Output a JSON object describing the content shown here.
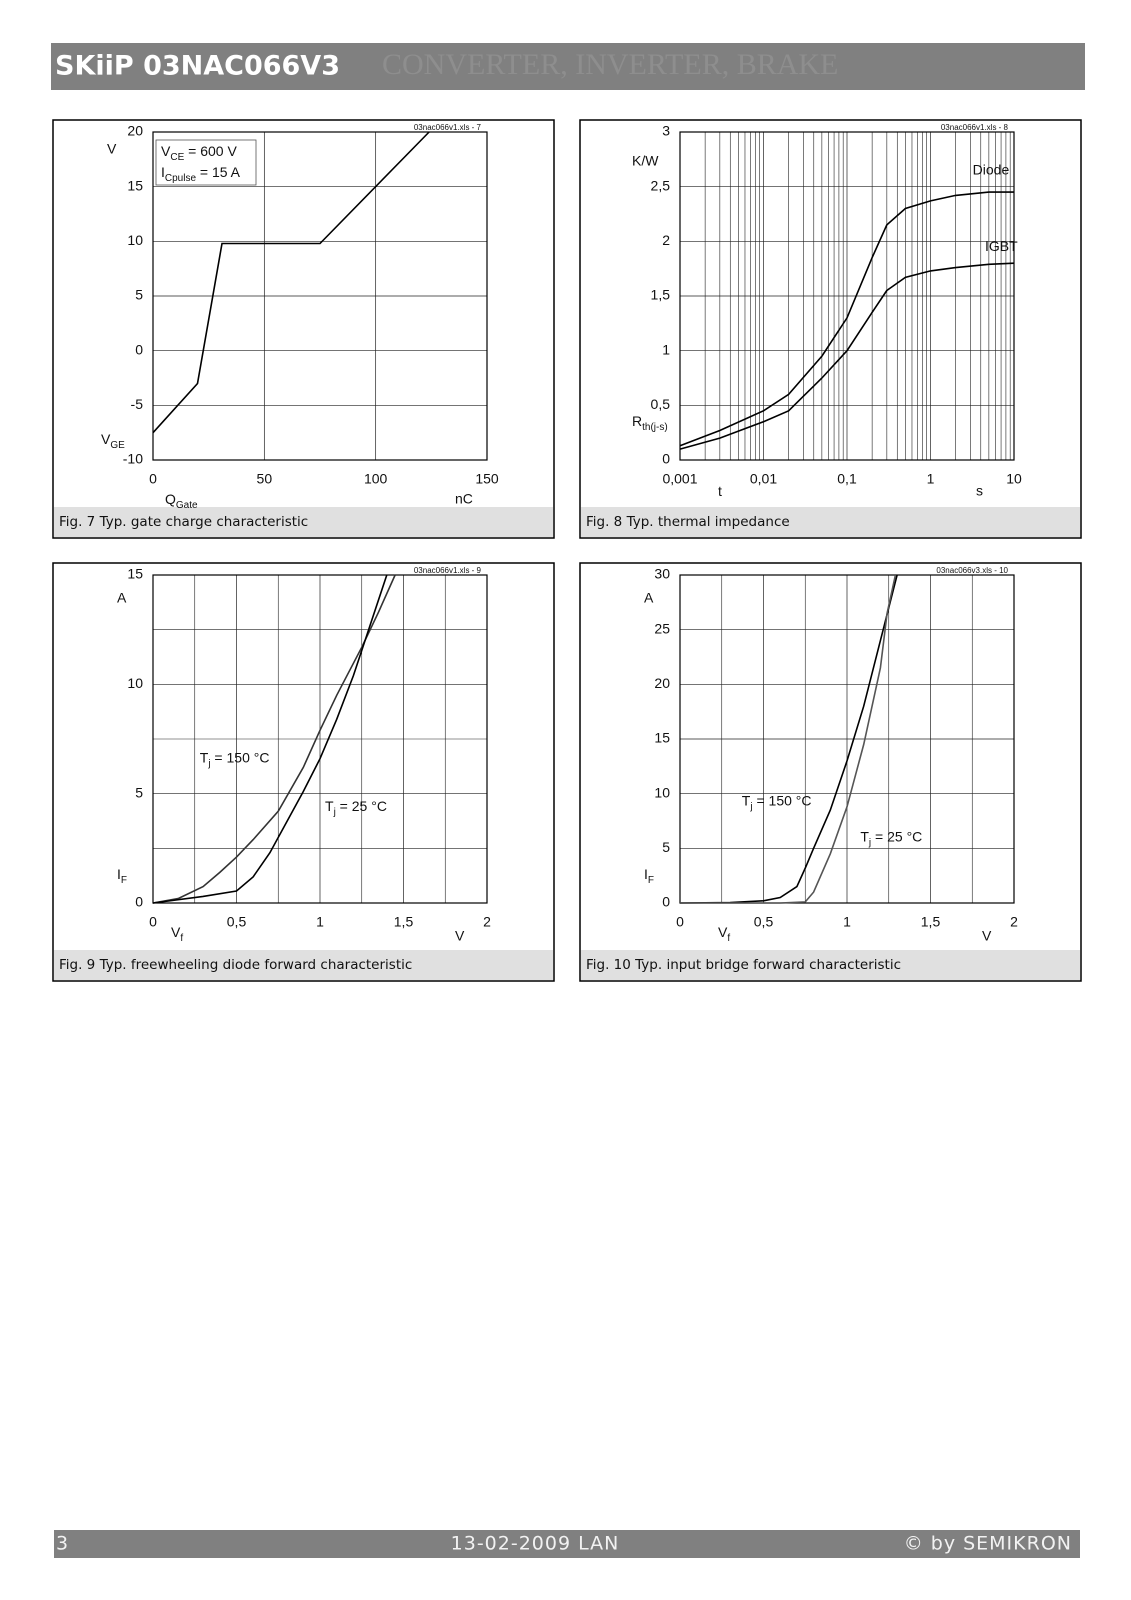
{
  "header": {
    "title": "SKiiP 03NAC066V3",
    "subtitle": "CONVERTER, INVERTER, BRAKE"
  },
  "footer": {
    "page": "3",
    "date": "13-02-2009  LAN",
    "copyright": "© by SEMIKRON"
  },
  "chart_data": [
    {
      "type": "line",
      "caption": "Fig. 7 Typ. gate charge characteristic",
      "note": "03nac066v1.xls - 7",
      "y_unit": "V",
      "y_label": [
        "V",
        "GE"
      ],
      "x_label": [
        "Q",
        "Gate"
      ],
      "x_unit": "nC",
      "annotation": [
        [
          "V",
          "CE",
          "   = 600 V"
        ],
        [
          "I",
          "Cpulse",
          " = 15 A"
        ]
      ],
      "xlim": [
        0,
        150
      ],
      "ylim": [
        -10,
        20
      ],
      "xticks": [
        0,
        50,
        100,
        150
      ],
      "yticks": [
        -10,
        -5,
        0,
        5,
        10,
        15,
        20
      ],
      "grid": true,
      "series": [
        {
          "color": "#000000",
          "x": [
            0,
            20,
            31,
            75,
            124
          ],
          "values": [
            -7.5,
            -3,
            9.8,
            9.8,
            20
          ]
        }
      ]
    },
    {
      "type": "line",
      "caption": "Fig. 8 Typ. thermal impedance",
      "note": "03nac066v1.xls - 8",
      "y_unit": "K/W",
      "y_label": [
        "R",
        "th(j-s)"
      ],
      "x_label": [
        "t"
      ],
      "x_unit": "s",
      "xscale": "log",
      "minor_grid": true,
      "xlim": [
        0.001,
        10
      ],
      "ylim": [
        0,
        3
      ],
      "xticks": [
        {
          "value": 0.001,
          "label": "0,001"
        },
        {
          "value": 0.01,
          "label": "0,01"
        },
        {
          "value": 0.1,
          "label": "0,1"
        },
        1,
        10
      ],
      "yticks": [
        0,
        {
          "value": 0.5,
          "label": "0,5"
        },
        1,
        {
          "value": 1.5,
          "label": "1,5"
        },
        2,
        {
          "value": 2.5,
          "label": "2,5"
        },
        3
      ],
      "grid": true,
      "series": [
        {
          "name": [
            "Diode"
          ],
          "color": "#000000",
          "x": [
            0.001,
            0.003,
            0.01,
            0.02,
            0.05,
            0.1,
            0.2,
            0.3,
            0.5,
            1,
            2,
            5,
            10
          ],
          "values": [
            0.13,
            0.27,
            0.45,
            0.6,
            0.95,
            1.3,
            1.85,
            2.15,
            2.3,
            2.37,
            2.42,
            2.45,
            2.45
          ]
        },
        {
          "name": [
            "IGBT"
          ],
          "color": "#000000",
          "x": [
            0.001,
            0.003,
            0.01,
            0.02,
            0.05,
            0.1,
            0.2,
            0.3,
            0.5,
            1,
            2,
            5,
            10
          ],
          "values": [
            0.1,
            0.2,
            0.35,
            0.45,
            0.75,
            1.0,
            1.35,
            1.55,
            1.67,
            1.73,
            1.76,
            1.79,
            1.8
          ]
        }
      ]
    },
    {
      "type": "line",
      "caption": "Fig. 9 Typ. freewheeling diode forward characteristic",
      "note": "03nac066v1.xls - 9",
      "y_unit": "A",
      "y_label": [
        "I",
        "F"
      ],
      "x_label": [
        "V",
        "f"
      ],
      "x_unit": "V",
      "xlim": [
        0,
        2
      ],
      "ylim": [
        0,
        15
      ],
      "xticks": [
        0,
        {
          "value": 0.5,
          "label": "0,5"
        },
        1,
        {
          "value": 1.5,
          "label": "1,5"
        },
        2
      ],
      "yticks": [
        0,
        5,
        10,
        15
      ],
      "minor_xticks": [
        0.25,
        0.75,
        1.25,
        1.75
      ],
      "minor_yticks": [
        2.5,
        7.5,
        12.5
      ],
      "grid": true,
      "series": [
        {
          "name": [
            "T",
            "j",
            " = 150 °C"
          ],
          "color": "#333333",
          "x": [
            0,
            0.15,
            0.3,
            0.4,
            0.5,
            0.6,
            0.75,
            0.9,
            1.0,
            1.1,
            1.25,
            1.35,
            1.45
          ],
          "values": [
            0,
            0.2,
            0.75,
            1.4,
            2.1,
            2.9,
            4.2,
            6.2,
            7.9,
            9.5,
            11.7,
            13.3,
            15
          ]
        },
        {
          "name": [
            "T",
            "j",
            " = 25 °C"
          ],
          "color": "#000000",
          "x": [
            0,
            0.3,
            0.5,
            0.6,
            0.7,
            0.8,
            0.9,
            1.0,
            1.1,
            1.2,
            1.3,
            1.4
          ],
          "values": [
            0,
            0.3,
            0.55,
            1.2,
            2.3,
            3.7,
            5.1,
            6.6,
            8.4,
            10.4,
            12.7,
            15
          ]
        }
      ]
    },
    {
      "type": "line",
      "caption": "Fig. 10 Typ. input bridge forward characteristic",
      "note": "03nac066v3.xls - 10",
      "y_unit": "A",
      "y_label": [
        "I",
        "F"
      ],
      "x_label": [
        "V",
        "f"
      ],
      "x_unit": "V",
      "xlim": [
        0,
        2
      ],
      "ylim": [
        0,
        30
      ],
      "xticks": [
        0,
        {
          "value": 0.5,
          "label": "0,5"
        },
        1,
        {
          "value": 1.5,
          "label": "1,5"
        },
        2
      ],
      "yticks": [
        0,
        5,
        10,
        15,
        20,
        25,
        30
      ],
      "minor_xticks": [
        0.25,
        0.75,
        1.25,
        1.75
      ],
      "grid": true,
      "series": [
        {
          "name": [
            "T",
            "j",
            " = 150 °C"
          ],
          "color": "#000000",
          "x": [
            0,
            0.3,
            0.5,
            0.6,
            0.7,
            0.75,
            0.8,
            0.9,
            1.0,
            1.1,
            1.2,
            1.3
          ],
          "values": [
            0,
            0.05,
            0.2,
            0.5,
            1.5,
            3.2,
            5,
            8.5,
            13,
            18,
            24,
            30
          ]
        },
        {
          "name": [
            "T",
            "j",
            " = 25 °C"
          ],
          "color": "#555555",
          "x": [
            0,
            0.6,
            0.75,
            0.8,
            0.9,
            1.0,
            1.1,
            1.2,
            1.24,
            1.29
          ],
          "values": [
            0,
            0,
            0.1,
            1,
            4.5,
            8.8,
            14.5,
            21.5,
            26.5,
            30
          ]
        }
      ]
    }
  ]
}
